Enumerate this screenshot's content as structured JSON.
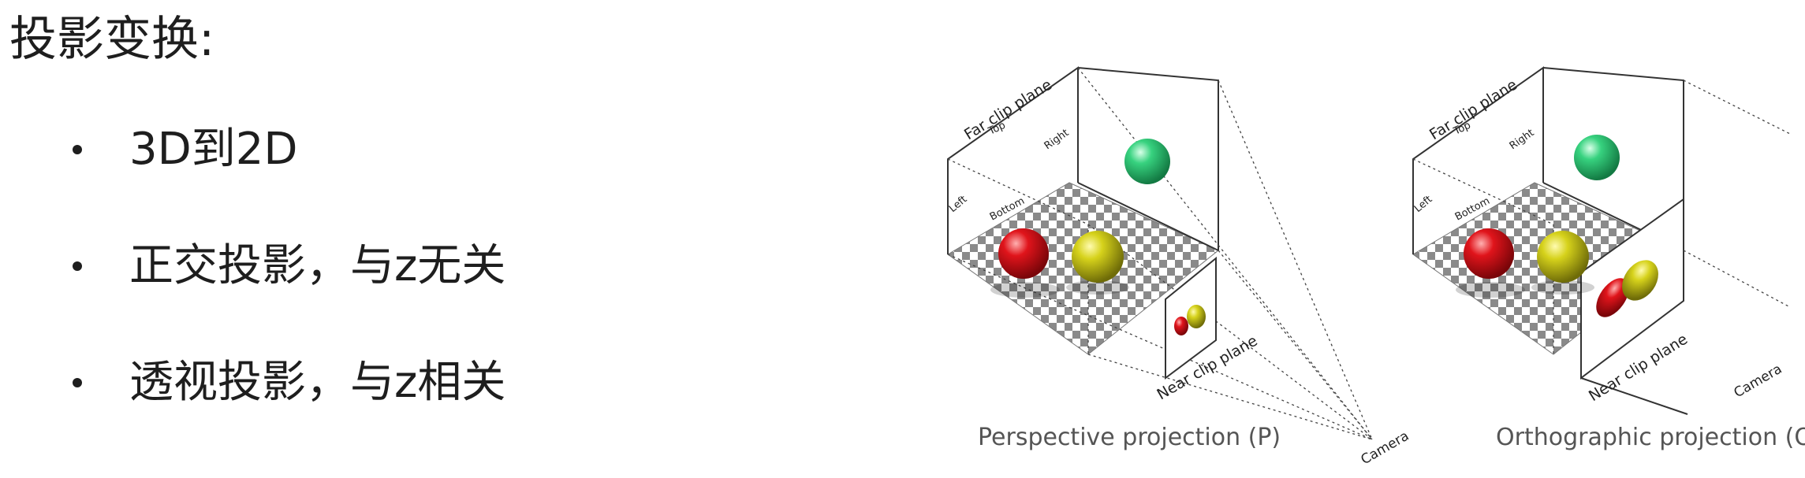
{
  "title": "投影变换:",
  "bullets": [
    "3D到2D",
    "正交投影，与z无关",
    "透视投影，与z相关"
  ],
  "perspective": {
    "far_plane": "Far clip plane",
    "top": "Top",
    "right": "Right",
    "left": "Left",
    "bottom": "Bottom",
    "near_plane": "Near clip plane",
    "camera": "Camera",
    "caption": "Perspective projection (P)"
  },
  "orthographic": {
    "far_plane": "Far clip plane",
    "top": "Top",
    "right": "Right",
    "left": "Left",
    "bottom": "Bottom",
    "near_plane": "Near clip plane",
    "camera": "Camera",
    "caption": "Orthographic projection (O)"
  },
  "colors": {
    "red": "#e0141b",
    "yellow": "#d6d21b",
    "green": "#37d27f",
    "checker_dark": "#8a8a8a",
    "checker_light": "#ffffff"
  }
}
